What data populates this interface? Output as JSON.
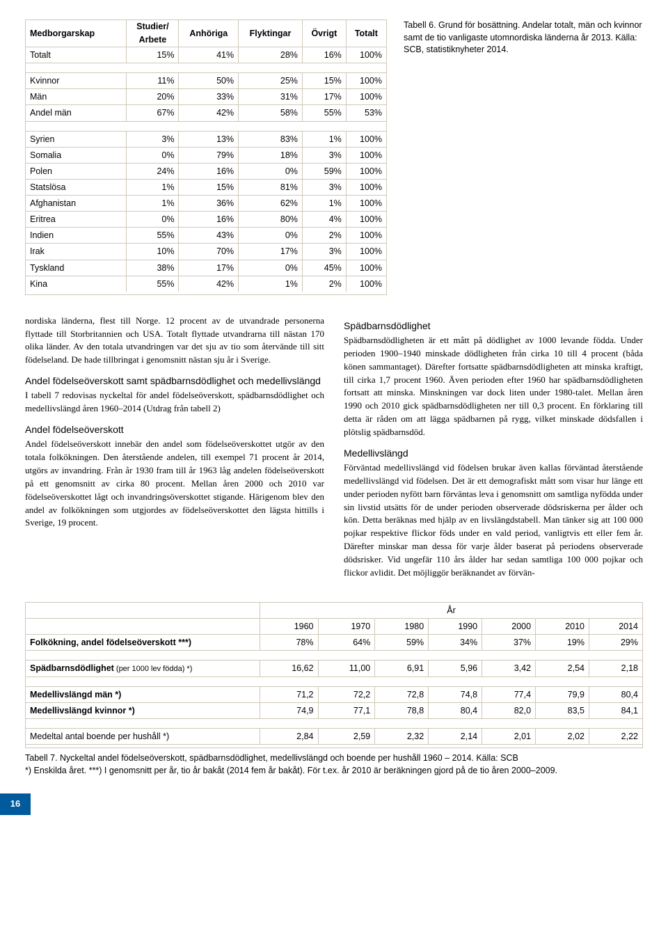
{
  "table1": {
    "headers": {
      "col1": "Medborgarskap",
      "col2a": "Studier/",
      "col2b": "Arbete",
      "col3": "Anhöriga",
      "col4": "Flyktingar",
      "col5": "Övrigt",
      "col6": "Totalt"
    },
    "section1": [
      {
        "label": "Totalt",
        "v": [
          "15%",
          "41%",
          "28%",
          "16%",
          "100%"
        ]
      }
    ],
    "section2": [
      {
        "label": "Kvinnor",
        "v": [
          "11%",
          "50%",
          "25%",
          "15%",
          "100%"
        ]
      },
      {
        "label": "Män",
        "v": [
          "20%",
          "33%",
          "31%",
          "17%",
          "100%"
        ]
      },
      {
        "label": "Andel män",
        "v": [
          "67%",
          "42%",
          "58%",
          "55%",
          "53%"
        ]
      }
    ],
    "section3": [
      {
        "label": "Syrien",
        "v": [
          "3%",
          "13%",
          "83%",
          "1%",
          "100%"
        ]
      },
      {
        "label": "Somalia",
        "v": [
          "0%",
          "79%",
          "18%",
          "3%",
          "100%"
        ]
      },
      {
        "label": "Polen",
        "v": [
          "24%",
          "16%",
          "0%",
          "59%",
          "100%"
        ]
      },
      {
        "label": "Statslösa",
        "v": [
          "1%",
          "15%",
          "81%",
          "3%",
          "100%"
        ]
      },
      {
        "label": "Afghanistan",
        "v": [
          "1%",
          "36%",
          "62%",
          "1%",
          "100%"
        ]
      },
      {
        "label": "Eritrea",
        "v": [
          "0%",
          "16%",
          "80%",
          "4%",
          "100%"
        ]
      },
      {
        "label": "Indien",
        "v": [
          "55%",
          "43%",
          "0%",
          "2%",
          "100%"
        ]
      },
      {
        "label": "Irak",
        "v": [
          "10%",
          "70%",
          "17%",
          "3%",
          "100%"
        ]
      },
      {
        "label": "Tyskland",
        "v": [
          "38%",
          "17%",
          "0%",
          "45%",
          "100%"
        ]
      },
      {
        "label": "Kina",
        "v": [
          "55%",
          "42%",
          "1%",
          "2%",
          "100%"
        ]
      }
    ]
  },
  "caption1": "Tabell 6. Grund för bosättning. Andelar totalt, män och kvinnor samt de tio vanligaste utomnordiska länderna år 2013. Källa: SCB, statistiknyheter 2014.",
  "bodyLeft": {
    "p1": "nordiska länderna, flest till Norge. 12 procent av de utvandrade personerna flyttade till Storbritannien och USA. Totalt flyttade utvandrarna till nästan 170 olika länder. Av den totala utvandringen var det sju av tio som återvände till sitt födelseland. De hade tillbringat i genomsnitt nästan sju år i Sverige.",
    "h1": "Andel födelseöverskott samt spädbarnsdödlighet och medellivslängd",
    "p2": "I tabell 7 redovisas nyckeltal för andel födelseöverskott, spädbarnsdödlighet och medellivslängd åren 1960–2014 (Utdrag från tabell 2)",
    "h2": "Andel födelseöverskott",
    "p3": "Andel födelseöverskott innebär den andel som födelseöverskottet utgör av den totala folkökningen. Den återstående andelen, till exempel 71 procent år 2014, utgörs av invandring. Från år 1930 fram till år 1963 låg andelen födelseöverskott på ett genomsnitt av cirka 80 procent. Mellan åren 2000 och 2010 var födelseöverskottet lågt och invandringsöverskottet stigande. Härigenom blev den andel av folkökningen som utgjordes av födelseöverskottet den lägsta hittills i Sverige, 19 procent."
  },
  "bodyRight": {
    "h1": "Spädbarnsdödlighet",
    "p1": "Spädbarnsdödligheten är ett mått på dödlighet av 1000 levande födda. Under perioden 1900–1940 minskade dödligheten från cirka 10 till 4 procent (båda könen sammantaget). Därefter fortsatte spädbarnsdödligheten att minska kraftigt, till cirka 1,7 procent 1960. Även perioden efter 1960 har spädbarnsdödligheten fortsatt att minska. Minskningen var dock liten under 1980-talet. Mellan åren 1990 och 2010 gick spädbarnsdödligheten ner till 0,3 procent. En förklaring till detta är råden om att lägga spädbarnen på rygg, vilket minskade dödsfallen i plötslig spädbarnsdöd.",
    "h2": "Medellivslängd",
    "p2": "Förväntad medellivslängd vid födelsen brukar även kallas förväntad återstående medellivslängd vid födelsen. Det är ett demografiskt mått som visar hur länge ett under perioden nyfött barn förväntas leva i genomsnitt om samtliga nyfödda under sin livstid utsätts för de under perioden observerade dödsriskerna per ålder och kön. Detta beräknas med hjälp av en livslängdstabell. Man tänker sig att 100 000 pojkar respektive flickor föds under en vald period, vanligtvis ett eller fem år. Därefter minskar man dessa för varje ålder baserat på periodens observerade dödsrisker. Vid ungefär 110 års ålder har sedan samtliga 100 000 pojkar och flickor avlidit. Det möjliggör beräknandet av förvän-"
  },
  "table2": {
    "yearLabel": "År",
    "years": [
      "1960",
      "1970",
      "1980",
      "1990",
      "2000",
      "2010",
      "2014"
    ],
    "rows": [
      {
        "label": "Folkökning, andel födelseöverskott ***)",
        "bold": true,
        "v": [
          "78%",
          "64%",
          "59%",
          "34%",
          "37%",
          "19%",
          "29%"
        ]
      },
      {
        "gap": true
      },
      {
        "label": "Spädbarnsdödlighet",
        "sub": " (per 1000 lev födda) *)",
        "bold": true,
        "v": [
          "16,62",
          "11,00",
          "6,91",
          "5,96",
          "3,42",
          "2,54",
          "2,18"
        ]
      },
      {
        "gap": true
      },
      {
        "label": "Medellivslängd män *)",
        "bold": true,
        "v": [
          "71,2",
          "72,2",
          "72,8",
          "74,8",
          "77,4",
          "79,9",
          "80,4"
        ]
      },
      {
        "label": "Medellivslängd kvinnor *)",
        "bold": true,
        "v": [
          "74,9",
          "77,1",
          "78,8",
          "80,4",
          "82,0",
          "83,5",
          "84,1"
        ]
      },
      {
        "gap": true
      },
      {
        "label": "Medeltal antal boende per hushåll *)",
        "bold": false,
        "v": [
          "2,84",
          "2,59",
          "2,32",
          "2,14",
          "2,01",
          "2,02",
          "2,22"
        ]
      }
    ]
  },
  "caption2a": "Tabell 7. Nyckeltal andel födelseöverskott, spädbarnsdödlighet, medellivslängd och boende per hushåll 1960 – 2014. Källa: SCB",
  "caption2b": "*) Enskilda året. ***) I genomsnitt per år, tio år bakåt (2014 fem år bakåt). För t.ex. år 2010 är beräkningen gjord på de tio åren 2000–2009.",
  "pageNumber": "16"
}
